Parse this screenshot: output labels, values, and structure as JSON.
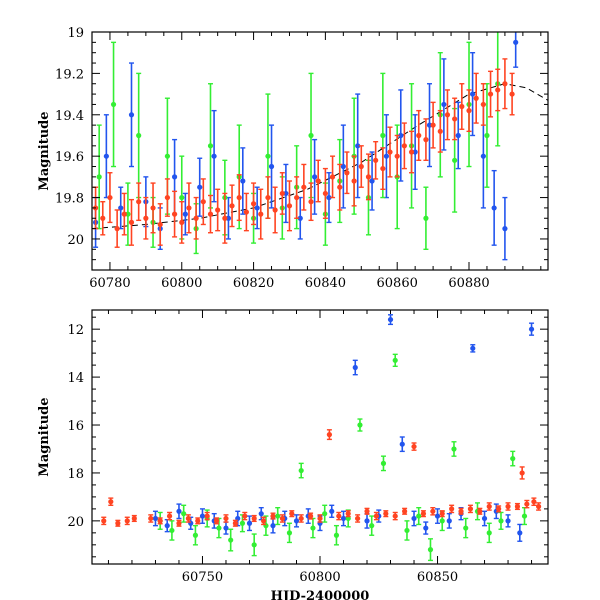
{
  "chart_data": [
    {
      "type": "scatter",
      "panel": "top",
      "ylabel": "Magnitude",
      "xlabel": "",
      "xlim": [
        60775,
        60902
      ],
      "ylim": [
        20.15,
        19.0
      ],
      "y_inverted": true,
      "x_ticks": [
        60780,
        60800,
        60820,
        60840,
        60860,
        60880
      ],
      "x_tick_labels": [
        "60780",
        "60800",
        "60820",
        "60840",
        "60860",
        "60880"
      ],
      "y_ticks": [
        19,
        19.2,
        19.4,
        19.6,
        19.8,
        20
      ],
      "y_tick_labels": [
        "19",
        "19.2",
        "19.4",
        "19.6",
        "19.8",
        "20"
      ],
      "model_curve": {
        "style": "dashed",
        "color": "#000000",
        "x": [
          60775,
          60790,
          60805,
          60820,
          60835,
          60850,
          60865,
          60880,
          60890,
          60896,
          60902
        ],
        "y": [
          19.95,
          19.93,
          19.9,
          19.85,
          19.76,
          19.63,
          19.46,
          19.3,
          19.25,
          19.27,
          19.33
        ]
      },
      "series": [
        {
          "color": "#2255ee",
          "x": [
            60776,
            60779,
            60783,
            60786,
            60790,
            60794,
            60798,
            60801,
            60805,
            60809,
            60813,
            60817,
            60821,
            60825,
            60829,
            60833,
            60837,
            60841,
            60845,
            60849,
            60853,
            60857,
            60861,
            60865,
            60869,
            60873,
            60877,
            60881,
            60884,
            60887,
            60890,
            60893
          ],
          "y": [
            19.92,
            19.6,
            19.85,
            19.4,
            19.82,
            19.95,
            19.7,
            19.88,
            19.75,
            19.6,
            19.9,
            19.72,
            19.85,
            19.65,
            19.78,
            19.9,
            19.7,
            19.8,
            19.65,
            19.55,
            19.72,
            19.6,
            19.5,
            19.58,
            19.45,
            19.35,
            19.5,
            19.3,
            19.6,
            19.85,
            19.95,
            19.05
          ],
          "err": [
            0.12,
            0.2,
            0.1,
            0.25,
            0.12,
            0.1,
            0.18,
            0.1,
            0.14,
            0.22,
            0.1,
            0.16,
            0.1,
            0.2,
            0.14,
            0.1,
            0.18,
            0.12,
            0.2,
            0.25,
            0.14,
            0.2,
            0.22,
            0.18,
            0.2,
            0.22,
            0.16,
            0.2,
            0.25,
            0.18,
            0.15,
            0.12
          ]
        },
        {
          "color": "#33ee33",
          "x": [
            60777,
            60781,
            60785,
            60788,
            60792,
            60796,
            60800,
            60804,
            60808,
            60812,
            60816,
            60820,
            60824,
            60828,
            60832,
            60836,
            60840,
            60844,
            60848,
            60852,
            60856,
            60860,
            60864,
            60868,
            60872,
            60876,
            60880,
            60885,
            60888
          ],
          "y": [
            19.7,
            19.35,
            19.88,
            19.5,
            19.92,
            19.6,
            19.8,
            19.95,
            19.55,
            19.8,
            19.7,
            19.9,
            19.6,
            19.85,
            19.75,
            19.5,
            19.88,
            19.72,
            19.6,
            19.8,
            19.5,
            19.7,
            19.55,
            19.9,
            19.4,
            19.62,
            19.35,
            19.5,
            19.25
          ],
          "err": [
            0.25,
            0.3,
            0.15,
            0.3,
            0.12,
            0.28,
            0.2,
            0.12,
            0.3,
            0.18,
            0.25,
            0.12,
            0.3,
            0.15,
            0.2,
            0.3,
            0.15,
            0.2,
            0.28,
            0.18,
            0.3,
            0.25,
            0.3,
            0.15,
            0.3,
            0.25,
            0.3,
            0.25,
            0.3
          ]
        },
        {
          "color": "#ff4422",
          "x": [
            60776,
            60778,
            60780,
            60782,
            60784,
            60786,
            60788,
            60790,
            60792,
            60794,
            60796,
            60798,
            60800,
            60802,
            60804,
            60806,
            60808,
            60810,
            60812,
            60814,
            60816,
            60818,
            60820,
            60822,
            60824,
            60826,
            60828,
            60830,
            60832,
            60834,
            60836,
            60838,
            60840,
            60842,
            60844,
            60846,
            60848,
            60850,
            60852,
            60854,
            60856,
            60858,
            60860,
            60862,
            60864,
            60866,
            60868,
            60870,
            60872,
            60874,
            60876,
            60878,
            60880,
            60882,
            60884,
            60886,
            60888,
            60890,
            60892
          ],
          "y": [
            19.85,
            19.9,
            19.8,
            19.95,
            19.88,
            19.92,
            19.82,
            19.9,
            19.85,
            19.93,
            19.8,
            19.88,
            19.92,
            19.85,
            19.9,
            19.82,
            19.88,
            19.86,
            19.9,
            19.84,
            19.8,
            19.87,
            19.83,
            19.88,
            19.8,
            19.86,
            19.78,
            19.84,
            19.8,
            19.75,
            19.82,
            19.72,
            19.78,
            19.7,
            19.75,
            19.68,
            19.72,
            19.65,
            19.7,
            19.62,
            19.66,
            19.58,
            19.6,
            19.55,
            19.58,
            19.5,
            19.52,
            19.45,
            19.48,
            19.4,
            19.42,
            19.36,
            19.38,
            19.32,
            19.35,
            19.3,
            19.28,
            19.25,
            19.3
          ],
          "err": [
            0.1,
            0.08,
            0.12,
            0.09,
            0.1,
            0.11,
            0.09,
            0.1,
            0.12,
            0.1,
            0.09,
            0.11,
            0.1,
            0.12,
            0.1,
            0.11,
            0.09,
            0.1,
            0.12,
            0.1,
            0.11,
            0.09,
            0.1,
            0.12,
            0.1,
            0.11,
            0.1,
            0.12,
            0.1,
            0.11,
            0.09,
            0.1,
            0.12,
            0.1,
            0.11,
            0.1,
            0.12,
            0.1,
            0.11,
            0.09,
            0.1,
            0.12,
            0.1,
            0.11,
            0.1,
            0.12,
            0.1,
            0.11,
            0.1,
            0.12,
            0.1,
            0.11,
            0.1,
            0.12,
            0.1,
            0.11,
            0.1,
            0.12,
            0.1
          ]
        }
      ]
    },
    {
      "type": "scatter",
      "panel": "bottom",
      "ylabel": "Magnitude",
      "xlabel": "HJD-2400000",
      "xlim": [
        60703,
        60897
      ],
      "ylim": [
        21.8,
        11.2
      ],
      "y_inverted": true,
      "x_ticks": [
        60750,
        60800,
        60850
      ],
      "x_tick_labels": [
        "60750",
        "60800",
        "60850"
      ],
      "y_ticks": [
        12,
        14,
        16,
        18,
        20
      ],
      "y_tick_labels": [
        "12",
        "14",
        "16",
        "18",
        "20"
      ],
      "series": [
        {
          "color": "#2255ee",
          "x": [
            60730,
            60735,
            60740,
            60745,
            60750,
            60755,
            60760,
            60765,
            60770,
            60775,
            60780,
            60785,
            60790,
            60795,
            60800,
            60805,
            60810,
            60815,
            60820,
            60825,
            60830,
            60835,
            60840,
            60845,
            60850,
            60855,
            60860,
            60865,
            60870,
            60875,
            60880,
            60885,
            60890
          ],
          "y": [
            19.9,
            20.2,
            19.6,
            20.1,
            19.8,
            20.0,
            20.3,
            19.9,
            20.1,
            19.7,
            20.2,
            19.9,
            20.0,
            19.8,
            20.1,
            19.6,
            19.9,
            13.6,
            20.0,
            19.8,
            11.6,
            16.8,
            19.9,
            20.3,
            19.8,
            20.0,
            19.7,
            12.8,
            19.9,
            19.6,
            20.0,
            20.5,
            12.0
          ],
          "err": [
            0.3,
            0.25,
            0.3,
            0.25,
            0.3,
            0.3,
            0.25,
            0.3,
            0.3,
            0.25,
            0.3,
            0.3,
            0.25,
            0.3,
            0.3,
            0.25,
            0.3,
            0.3,
            0.3,
            0.25,
            0.2,
            0.3,
            0.3,
            0.25,
            0.3,
            0.3,
            0.25,
            0.15,
            0.3,
            0.3,
            0.25,
            0.35,
            0.25
          ]
        },
        {
          "color": "#33ee33",
          "x": [
            60732,
            60737,
            60742,
            60747,
            60752,
            60757,
            60762,
            60767,
            60772,
            60777,
            60782,
            60787,
            60792,
            60797,
            60802,
            60807,
            60812,
            60817,
            60822,
            60827,
            60832,
            60837,
            60842,
            60847,
            60852,
            60857,
            60862,
            60867,
            60872,
            60877,
            60882,
            60887
          ],
          "y": [
            20.0,
            20.4,
            19.7,
            20.6,
            19.9,
            20.3,
            20.8,
            20.1,
            21.0,
            20.2,
            19.8,
            20.5,
            17.9,
            20.3,
            19.7,
            20.6,
            19.9,
            16.0,
            20.2,
            17.6,
            13.3,
            20.4,
            19.8,
            21.2,
            20.0,
            17.0,
            20.3,
            19.6,
            20.5,
            20.0,
            17.4,
            19.8
          ],
          "err": [
            0.35,
            0.4,
            0.35,
            0.4,
            0.35,
            0.4,
            0.45,
            0.35,
            0.45,
            0.4,
            0.35,
            0.4,
            0.3,
            0.4,
            0.35,
            0.4,
            0.35,
            0.25,
            0.4,
            0.3,
            0.25,
            0.4,
            0.35,
            0.45,
            0.4,
            0.3,
            0.4,
            0.35,
            0.4,
            0.35,
            0.3,
            0.35
          ]
        },
        {
          "color": "#ff4422",
          "x": [
            60708,
            60711,
            60714,
            60718,
            60721,
            60728,
            60732,
            60736,
            60740,
            60744,
            60748,
            60752,
            60756,
            60760,
            60764,
            60768,
            60772,
            60776,
            60780,
            60784,
            60788,
            60792,
            60796,
            60800,
            60804,
            60808,
            60812,
            60816,
            60820,
            60824,
            60828,
            60832,
            60836,
            60840,
            60844,
            60848,
            60852,
            60856,
            60860,
            60864,
            60868,
            60872,
            60876,
            60880,
            60884,
            60886,
            60888,
            60891,
            60893
          ],
          "y": [
            20.0,
            19.2,
            20.1,
            20.0,
            19.9,
            19.9,
            20.0,
            19.8,
            20.1,
            19.9,
            20.0,
            19.8,
            20.0,
            19.9,
            20.1,
            19.8,
            19.9,
            20.0,
            19.8,
            19.9,
            19.7,
            19.9,
            19.8,
            19.9,
            16.4,
            19.8,
            19.7,
            19.9,
            19.6,
            19.8,
            19.7,
            19.8,
            19.6,
            16.9,
            19.7,
            19.6,
            19.7,
            19.5,
            19.6,
            19.5,
            19.6,
            19.4,
            19.5,
            19.4,
            19.4,
            18.0,
            19.3,
            19.2,
            19.4
          ],
          "err": [
            0.15,
            0.15,
            0.12,
            0.15,
            0.12,
            0.15,
            0.12,
            0.15,
            0.12,
            0.15,
            0.12,
            0.15,
            0.12,
            0.15,
            0.12,
            0.15,
            0.12,
            0.15,
            0.12,
            0.15,
            0.12,
            0.15,
            0.12,
            0.15,
            0.2,
            0.15,
            0.12,
            0.15,
            0.12,
            0.15,
            0.12,
            0.15,
            0.12,
            0.15,
            0.12,
            0.15,
            0.12,
            0.15,
            0.12,
            0.15,
            0.12,
            0.15,
            0.12,
            0.15,
            0.12,
            0.25,
            0.15,
            0.15,
            0.15
          ]
        }
      ]
    }
  ]
}
